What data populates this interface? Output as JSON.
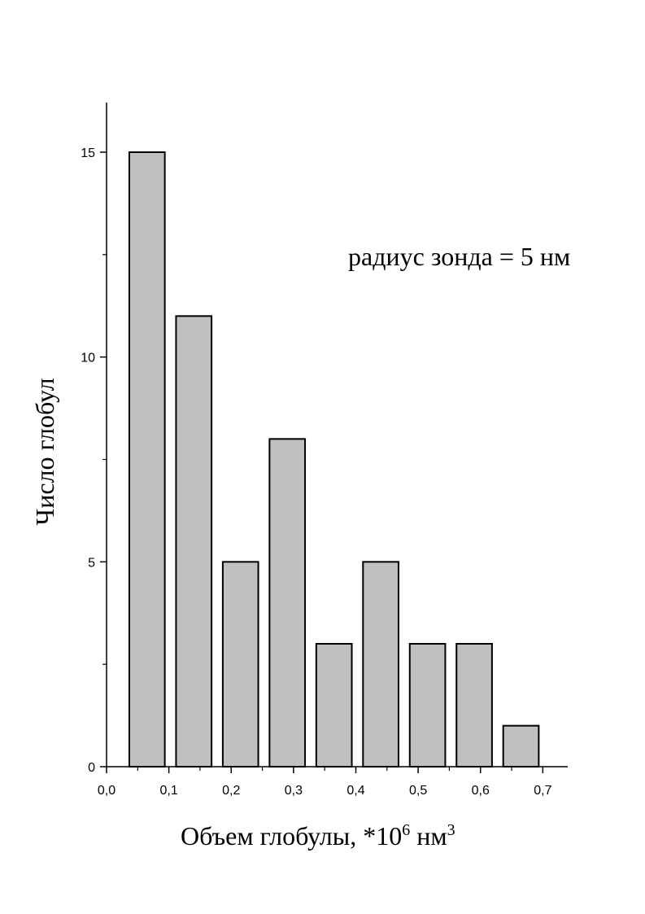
{
  "chart_data": {
    "type": "bar",
    "x": [
      0.065,
      0.14,
      0.215,
      0.29,
      0.365,
      0.44,
      0.515,
      0.59,
      0.665
    ],
    "values": [
      15,
      11,
      5,
      8,
      3,
      5,
      3,
      3,
      1
    ],
    "bar_width": 0.057,
    "xlim": [
      0.0,
      0.74
    ],
    "ylim": [
      0,
      16.2
    ],
    "x_ticks": [
      0.0,
      0.1,
      0.2,
      0.3,
      0.4,
      0.5,
      0.6,
      0.7
    ],
    "x_tick_labels": [
      "0,0",
      "0,1",
      "0,2",
      "0,3",
      "0,4",
      "0,5",
      "0,6",
      "0,7"
    ],
    "y_ticks": [
      0,
      5,
      10,
      15
    ],
    "y_tick_labels": [
      "0",
      "5",
      "10",
      "15"
    ],
    "y_minor_ticks": [
      2.5,
      7.5,
      12.5
    ],
    "xlabel": "Объем глобулы, *10",
    "xlabel_exp": "6",
    "xlabel_unit": " нм",
    "xlabel_unit_exp": "3",
    "ylabel": "Число глобул",
    "annotation": "радиус зонда = 5 нм",
    "bar_fill": "#c0c0c0",
    "bar_stroke": "#000000",
    "grid": false
  }
}
